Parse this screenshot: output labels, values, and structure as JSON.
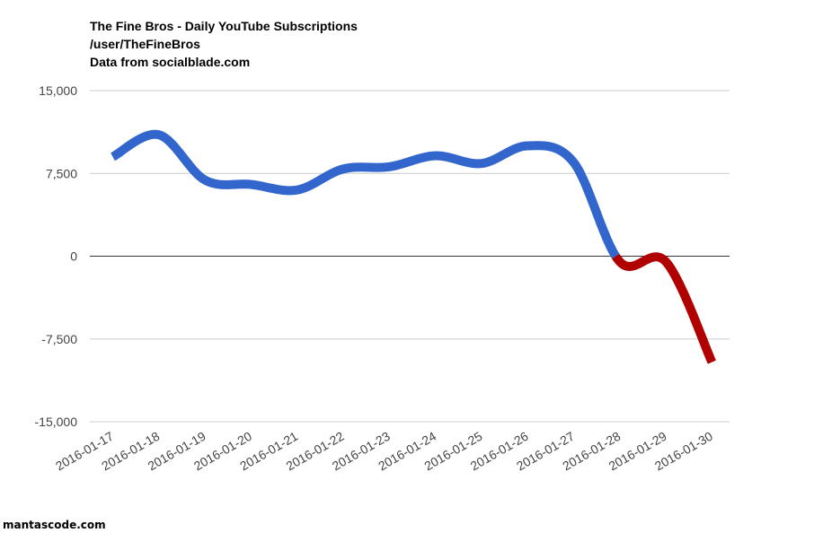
{
  "chart_data": {
    "type": "line",
    "title": "The Fine Bros - Daily YouTube Subscriptions",
    "subtitle": [
      "/user/TheFineBros",
      "Data from socialblade.com"
    ],
    "categories": [
      "2016-01-17",
      "2016-01-18",
      "2016-01-19",
      "2016-01-20",
      "2016-01-21",
      "2016-01-22",
      "2016-01-23",
      "2016-01-24",
      "2016-01-25",
      "2016-01-26",
      "2016-01-27",
      "2016-01-28",
      "2016-01-29",
      "2016-01-30"
    ],
    "values": [
      9000,
      11000,
      6900,
      6500,
      6000,
      7900,
      8100,
      9100,
      8400,
      10000,
      8500,
      -500,
      -500,
      -9600
    ],
    "ylim": [
      -15000,
      15000
    ],
    "yticks": [
      15000,
      7500,
      0,
      -7500,
      -15000
    ],
    "ytick_labels": [
      "15,000",
      "7,500",
      "0",
      "-7,500",
      "-15,000"
    ],
    "grid": true,
    "colors": {
      "positive": "#3366cc",
      "negative": "#b00000",
      "grid": "#cccccc",
      "baseline": "#333333",
      "tick_text": "#444444"
    }
  },
  "watermark": "mantascode.com"
}
